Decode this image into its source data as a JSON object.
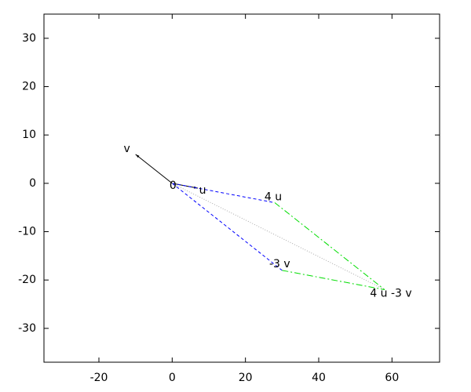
{
  "chart_data": {
    "type": "vector",
    "xlim": [
      -35,
      73
    ],
    "ylim": [
      -37,
      35
    ],
    "xticks": [
      -20,
      0,
      20,
      40,
      60
    ],
    "yticks": [
      -30,
      -20,
      -10,
      0,
      10,
      20,
      30
    ],
    "segments": [
      {
        "x": [
          0,
          7
        ],
        "y": [
          0,
          -1
        ],
        "color": "#000000",
        "dash": "solid",
        "arrow": true
      },
      {
        "x": [
          0,
          -10
        ],
        "y": [
          0,
          6
        ],
        "color": "#000000",
        "dash": "solid",
        "arrow": true
      },
      {
        "x": [
          0,
          28
        ],
        "y": [
          0,
          -4
        ],
        "color": "#0000ff",
        "dash": "dashed",
        "arrow": false
      },
      {
        "x": [
          0,
          30
        ],
        "y": [
          0,
          -18
        ],
        "color": "#0000ff",
        "dash": "dashed",
        "arrow": false
      },
      {
        "x": [
          28,
          58
        ],
        "y": [
          -4,
          -22
        ],
        "color": "#00dd00",
        "dash": "dashdot",
        "arrow": false
      },
      {
        "x": [
          30,
          58
        ],
        "y": [
          -18,
          -22
        ],
        "color": "#00dd00",
        "dash": "dashdot",
        "arrow": false
      },
      {
        "x": [
          0,
          58
        ],
        "y": [
          0,
          -22
        ],
        "color": "#aaaaaa",
        "dash": "dotted",
        "arrow": false
      }
    ],
    "labels": [
      {
        "text": "v",
        "x": -10,
        "y": 6
      },
      {
        "text": "0",
        "x": 0,
        "y": 0
      },
      {
        "text": "u",
        "x": 7,
        "y": -1
      },
      {
        "text": "4 u",
        "x": 28,
        "y": -4
      },
      {
        "text": "-3 v",
        "x": 30,
        "y": -18
      },
      {
        "text": "4 u -3 v",
        "x": 58,
        "y": -22
      }
    ]
  }
}
